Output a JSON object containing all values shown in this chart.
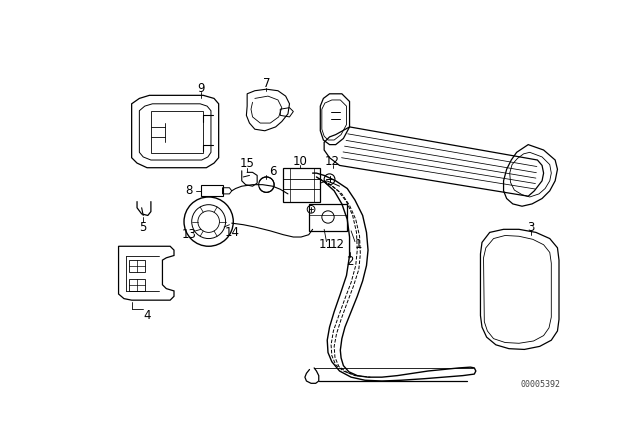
{
  "background_color": "#ffffff",
  "line_color": "#000000",
  "diagram_note": "00005392",
  "figsize": [
    6.4,
    4.48
  ],
  "dpi": 100
}
